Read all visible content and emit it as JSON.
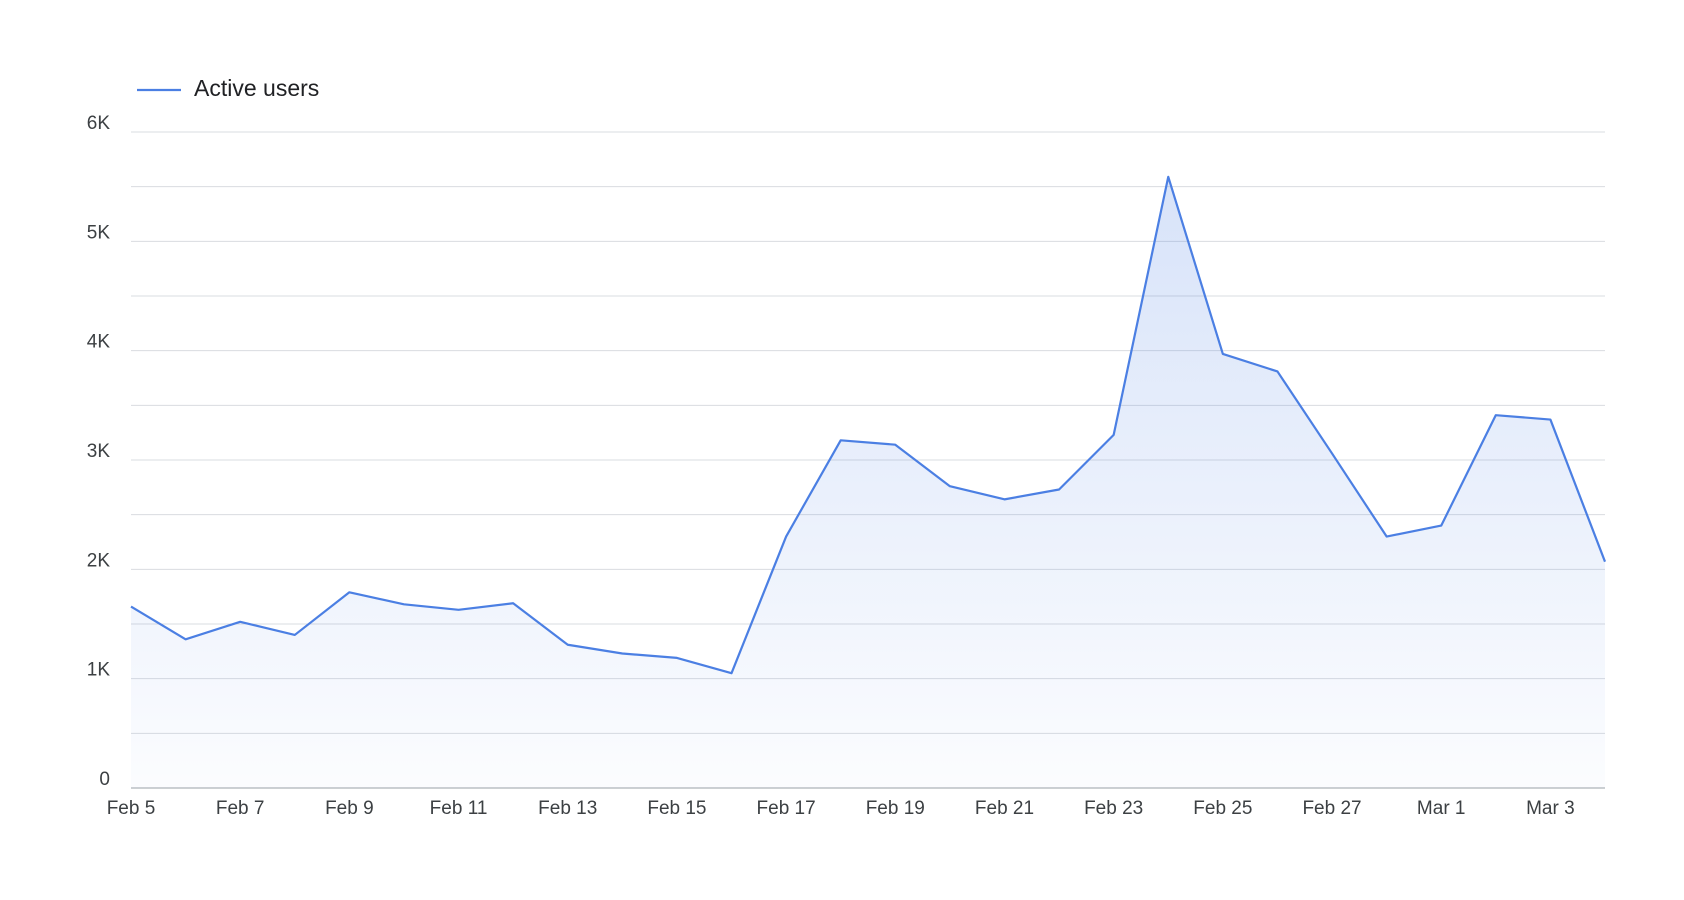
{
  "chart_data": {
    "type": "area",
    "categories": [
      "Feb 5",
      null,
      "Feb 7",
      null,
      "Feb 9",
      null,
      "Feb 11",
      null,
      "Feb 13",
      null,
      "Feb 15",
      null,
      "Feb 17",
      null,
      "Feb 19",
      null,
      "Feb 21",
      null,
      "Feb 23",
      null,
      "Feb 25",
      null,
      "Feb 27",
      null,
      "Mar 1",
      null,
      "Mar 3",
      null
    ],
    "series": [
      {
        "name": "Active users",
        "color": "#4b7fe3",
        "values": [
          1660,
          1360,
          1520,
          1400,
          1790,
          1680,
          1630,
          1690,
          1310,
          1230,
          1190,
          1050,
          2300,
          3180,
          3140,
          2760,
          2640,
          2730,
          3230,
          5590,
          3970,
          3810,
          3060,
          2300,
          2400,
          3410,
          3370,
          2070
        ]
      }
    ],
    "ylim": [
      0,
      6000
    ],
    "yticks": [
      {
        "value": 0,
        "label": "0"
      },
      {
        "value": 1000,
        "label": "1K"
      },
      {
        "value": 2000,
        "label": "2K"
      },
      {
        "value": 3000,
        "label": "3K"
      },
      {
        "value": 4000,
        "label": "4K"
      },
      {
        "value": 5000,
        "label": "5K"
      },
      {
        "value": 6000,
        "label": "6K"
      }
    ],
    "minor_yticks": [
      500,
      1500,
      2500,
      3500,
      4500,
      5500
    ],
    "grid": true,
    "legend": "top-left"
  }
}
